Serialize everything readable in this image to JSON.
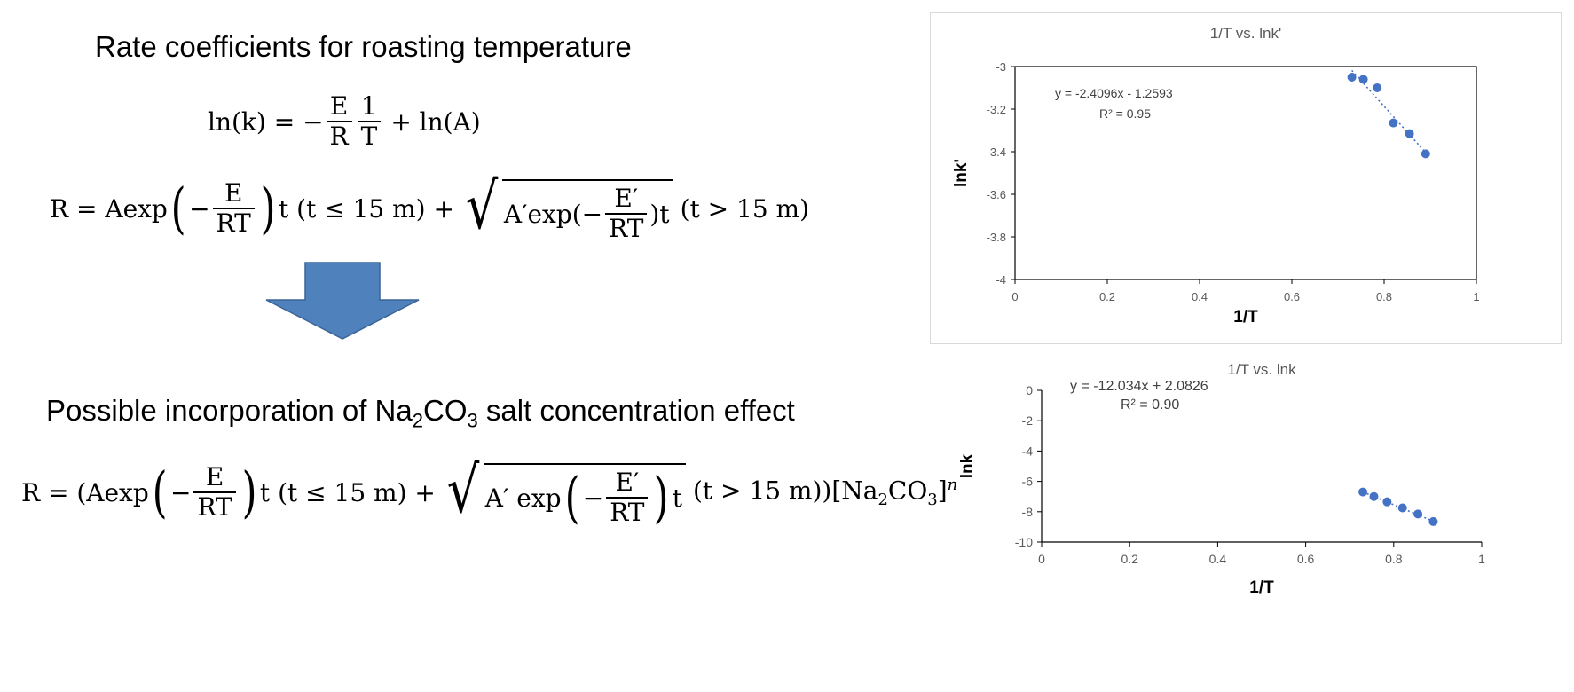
{
  "left": {
    "heading1": "Rate coefficients for roasting temperature",
    "heading2_pre": "Possible incorporation of Na",
    "heading2_sub1": "2",
    "heading2_mid": "CO",
    "heading2_sub2": "3",
    "heading2_post": " salt concentration effect",
    "eq1": {
      "lhs": "ln(k) = −",
      "f1_num": "E",
      "f1_den": "R",
      "f2_num": "1",
      "f2_den": "T",
      "rhs": "+ ln(A)"
    },
    "eq2": {
      "lhs": "R = Aexp",
      "neg": "−",
      "f_num": "E",
      "f_den": "RT",
      "cond1": "t (t ≤ 15 m) +",
      "rad_pre": "A′exp(−",
      "rf_num": "E′",
      "rf_den": "RT",
      "rad_post": ")t",
      "cond2": "(t > 15 m)"
    },
    "eq3": {
      "lhs": "R = (Aexp",
      "neg": "−",
      "f_num": "E",
      "f_den": "RT",
      "cond1": "t (t ≤ 15 m) +",
      "rad_pre": "A′ exp",
      "neg2": "−",
      "rf_num": "E′",
      "rf_den": "RT",
      "rad_post": "t",
      "cond2": "(t > 15 m))[Na",
      "sub1": "2",
      "co": "CO",
      "sub2": "3",
      "close": "]",
      "exp": "n"
    },
    "arrow_color": "#4f81bd"
  },
  "chart_data": [
    {
      "type": "scatter",
      "title": "1/T vs. lnk'",
      "xlabel": "1/T",
      "ylabel": "lnk'",
      "xlim": [
        0,
        1
      ],
      "ylim": [
        -4,
        -3
      ],
      "xticks": [
        "0",
        "0.2",
        "0.4",
        "0.6",
        "0.8",
        "1"
      ],
      "yticks": [
        "-3",
        "-3.2",
        "-3.4",
        "-3.6",
        "-3.8",
        "-4"
      ],
      "x": [
        0.73,
        0.755,
        0.785,
        0.82,
        0.855,
        0.89
      ],
      "y": [
        -3.05,
        -3.06,
        -3.1,
        -3.265,
        -3.315,
        -3.41
      ],
      "trendline": {
        "equation": "y = -2.4096x - 1.2593",
        "r2": "R² = 0.95",
        "slope": -2.4096,
        "intercept": -1.2593
      },
      "grid": false,
      "marker_color": "#4472c4",
      "box_border": true
    },
    {
      "type": "scatter",
      "title": "1/T vs. lnk",
      "xlabel": "1/T",
      "ylabel": "lnk",
      "xlim": [
        0,
        1
      ],
      "ylim": [
        -10,
        0
      ],
      "xticks": [
        "0",
        "0.2",
        "0.4",
        "0.6",
        "0.8",
        "1"
      ],
      "yticks": [
        "0",
        "-2",
        "-4",
        "-6",
        "-8",
        "-10"
      ],
      "x": [
        0.73,
        0.755,
        0.785,
        0.82,
        0.855,
        0.89
      ],
      "y": [
        -6.7,
        -7.0,
        -7.35,
        -7.75,
        -8.15,
        -8.65
      ],
      "trendline": {
        "equation": "y = -12.034x + 2.0826",
        "r2": "R² = 0.90",
        "slope": -12.034,
        "intercept": 2.0826
      },
      "grid": false,
      "marker_color": "#4472c4",
      "box_border": false
    }
  ]
}
